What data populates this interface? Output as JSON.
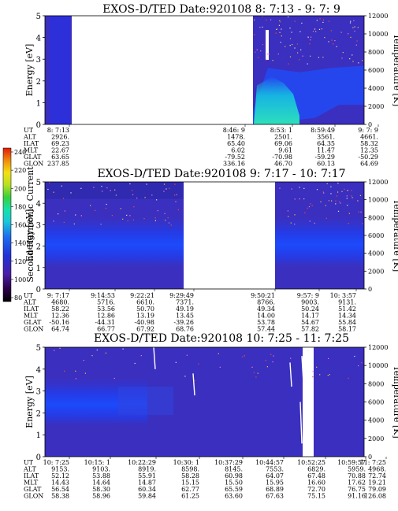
{
  "colorbar": {
    "label": "Second Harmonic Current",
    "ticks": [
      "240",
      "220",
      "200",
      "180",
      "160",
      "140",
      "120",
      "100",
      "80"
    ]
  },
  "chart_data": [
    {
      "type": "heatmap",
      "title": "EXOS-D/TED   Date:920108  8: 7:13 - 9: 7: 9",
      "ylabel": "Energy [eV]",
      "y2label": "Temperature [K]",
      "ylim": [
        0,
        5
      ],
      "y_ticks": [
        "0",
        "1",
        "2",
        "3",
        "4",
        "5"
      ],
      "y2lim": [
        0,
        12000
      ],
      "y2_ticks": [
        "0",
        "2000",
        "4000",
        "6000",
        "8000",
        "10000",
        "12000"
      ],
      "data_gaps": [
        "8: 9 - 8:46:9"
      ],
      "orbit_table": {
        "row_labels": [
          "UT",
          "ALT",
          "ILAT",
          "MLT",
          "GLAT",
          "GLON"
        ],
        "columns": [
          {
            "UT": "8: 7:13",
            "ALT": "2926.",
            "ILAT": "69.23",
            "MLT": "22.67",
            "GLAT": "63.65",
            "GLON": "237.85"
          },
          {
            "UT": "8:46: 9",
            "ALT": "1478.",
            "ILAT": "65.40",
            "MLT": "6.02",
            "GLAT": "-79.52",
            "GLON": "336.16"
          },
          {
            "UT": "8:53: 1",
            "ALT": "2501.",
            "ILAT": "69.06",
            "MLT": "9.61",
            "GLAT": "-70.98",
            "GLON": "46.70"
          },
          {
            "UT": "8:59:49",
            "ALT": "3561.",
            "ILAT": "64.35",
            "MLT": "11.47",
            "GLAT": "-59.29",
            "GLON": "60.13"
          },
          {
            "UT": "9: 7: 9",
            "ALT": "4661.",
            "ILAT": "58.32",
            "MLT": "12.35",
            "GLAT": "-50.29",
            "GLON": "64.69"
          }
        ]
      }
    },
    {
      "type": "heatmap",
      "title": "EXOS-D/TED   Date:920108  9: 7:17 - 10: 7:17",
      "ylabel": "Energy [eV]",
      "y2label": "Temperature [K]",
      "ylim": [
        0,
        5
      ],
      "y_ticks": [
        "0",
        "1",
        "2",
        "3",
        "4",
        "5"
      ],
      "y2lim": [
        0,
        12000
      ],
      "y2_ticks": [
        "0",
        "2000",
        "4000",
        "6000",
        "8000",
        "10000",
        "12000"
      ],
      "data_gaps": [
        "9:32 - 9:50:21"
      ],
      "orbit_table": {
        "row_labels": [
          "UT",
          "ALT",
          "ILAT",
          "MLT",
          "GLAT",
          "GLON"
        ],
        "columns": [
          {
            "UT": "9: 7:17",
            "ALT": "4680.",
            "ILAT": "58.22",
            "MLT": "12.36",
            "GLAT": "-50.16",
            "GLON": "64.74"
          },
          {
            "UT": "9:14:53",
            "ALT": "5716.",
            "ILAT": "53.56",
            "MLT": "12.86",
            "GLAT": "-44.31",
            "GLON": "66.77"
          },
          {
            "UT": "9:22:21",
            "ALT": "6610.",
            "ILAT": "50.70",
            "MLT": "13.19",
            "GLAT": "-40.98",
            "GLON": "67.92"
          },
          {
            "UT": "9:29:49",
            "ALT": "7371.",
            "ILAT": "49.19",
            "MLT": "13.45",
            "GLAT": "-39.26",
            "GLON": "68.76"
          },
          {
            "UT": "9:50:21",
            "ALT": "8766.",
            "ILAT": "49.34",
            "MLT": "14.00",
            "GLAT": "53.78",
            "GLON": "57.44"
          },
          {
            "UT": "9:57: 9",
            "ALT": "9003.",
            "ILAT": "50.24",
            "MLT": "14.17",
            "GLAT": "54.67",
            "GLON": "57.82"
          },
          {
            "UT": "10: 3:57",
            "ALT": "9131.",
            "ILAT": "51.42",
            "MLT": "14.34",
            "GLAT": "55.84",
            "GLON": "58.17"
          }
        ]
      }
    },
    {
      "type": "heatmap",
      "title": "EXOS-D/TED   Date:920108  10: 7:25 - 11: 7:25",
      "ylabel": "Energy [eV]",
      "y2label": "Temperature [K]",
      "ylim": [
        0,
        5
      ],
      "y_ticks": [
        "0",
        "1",
        "2",
        "3",
        "4",
        "5"
      ],
      "y2lim": [
        0,
        12000
      ],
      "y2_ticks": [
        "0",
        "2000",
        "4000",
        "6000",
        "8000",
        "10000",
        "12000"
      ],
      "data_gaps": [
        "10:54 - 10:57"
      ],
      "orbit_table": {
        "row_labels": [
          "UT",
          "ALT",
          "ILAT",
          "MLT",
          "GLAT",
          "GLON"
        ],
        "columns": [
          {
            "UT": "10: 7:25",
            "ALT": "9153.",
            "ILAT": "52.12",
            "MLT": "14.43",
            "GLAT": "56.54",
            "GLON": "58.38"
          },
          {
            "UT": "10:15: 1",
            "ALT": "9103.",
            "ILAT": "53.88",
            "MLT": "14.64",
            "GLAT": "58.30",
            "GLON": "58.96"
          },
          {
            "UT": "10:22:29",
            "ALT": "8919.",
            "ILAT": "55.91",
            "MLT": "14.87",
            "GLAT": "60.34",
            "GLON": "59.84"
          },
          {
            "UT": "10:30: 1",
            "ALT": "8598.",
            "ILAT": "58.28",
            "MLT": "15.15",
            "GLAT": "62.77",
            "GLON": "61.25"
          },
          {
            "UT": "10:37:29",
            "ALT": "8145.",
            "ILAT": "60.98",
            "MLT": "15.50",
            "GLAT": "65.59",
            "GLON": "63.60"
          },
          {
            "UT": "10:44:57",
            "ALT": "7553.",
            "ILAT": "64.07",
            "MLT": "15.95",
            "GLAT": "68.89",
            "GLON": "67.63"
          },
          {
            "UT": "10:52:25",
            "ALT": "6829.",
            "ILAT": "67.48",
            "MLT": "16.60",
            "GLAT": "72.70",
            "GLON": "75.15"
          },
          {
            "UT": "10:59:57",
            "ALT": "5959.",
            "ILAT": "70.88",
            "MLT": "17.62",
            "GLAT": "76.75",
            "GLON": "91.16"
          },
          {
            "UT": "11: 7:25",
            "ALT": "4968.",
            "ILAT": "72.74",
            "MLT": "19.21",
            "GLAT": "79.09",
            "GLON": "126.08"
          }
        ]
      }
    }
  ]
}
